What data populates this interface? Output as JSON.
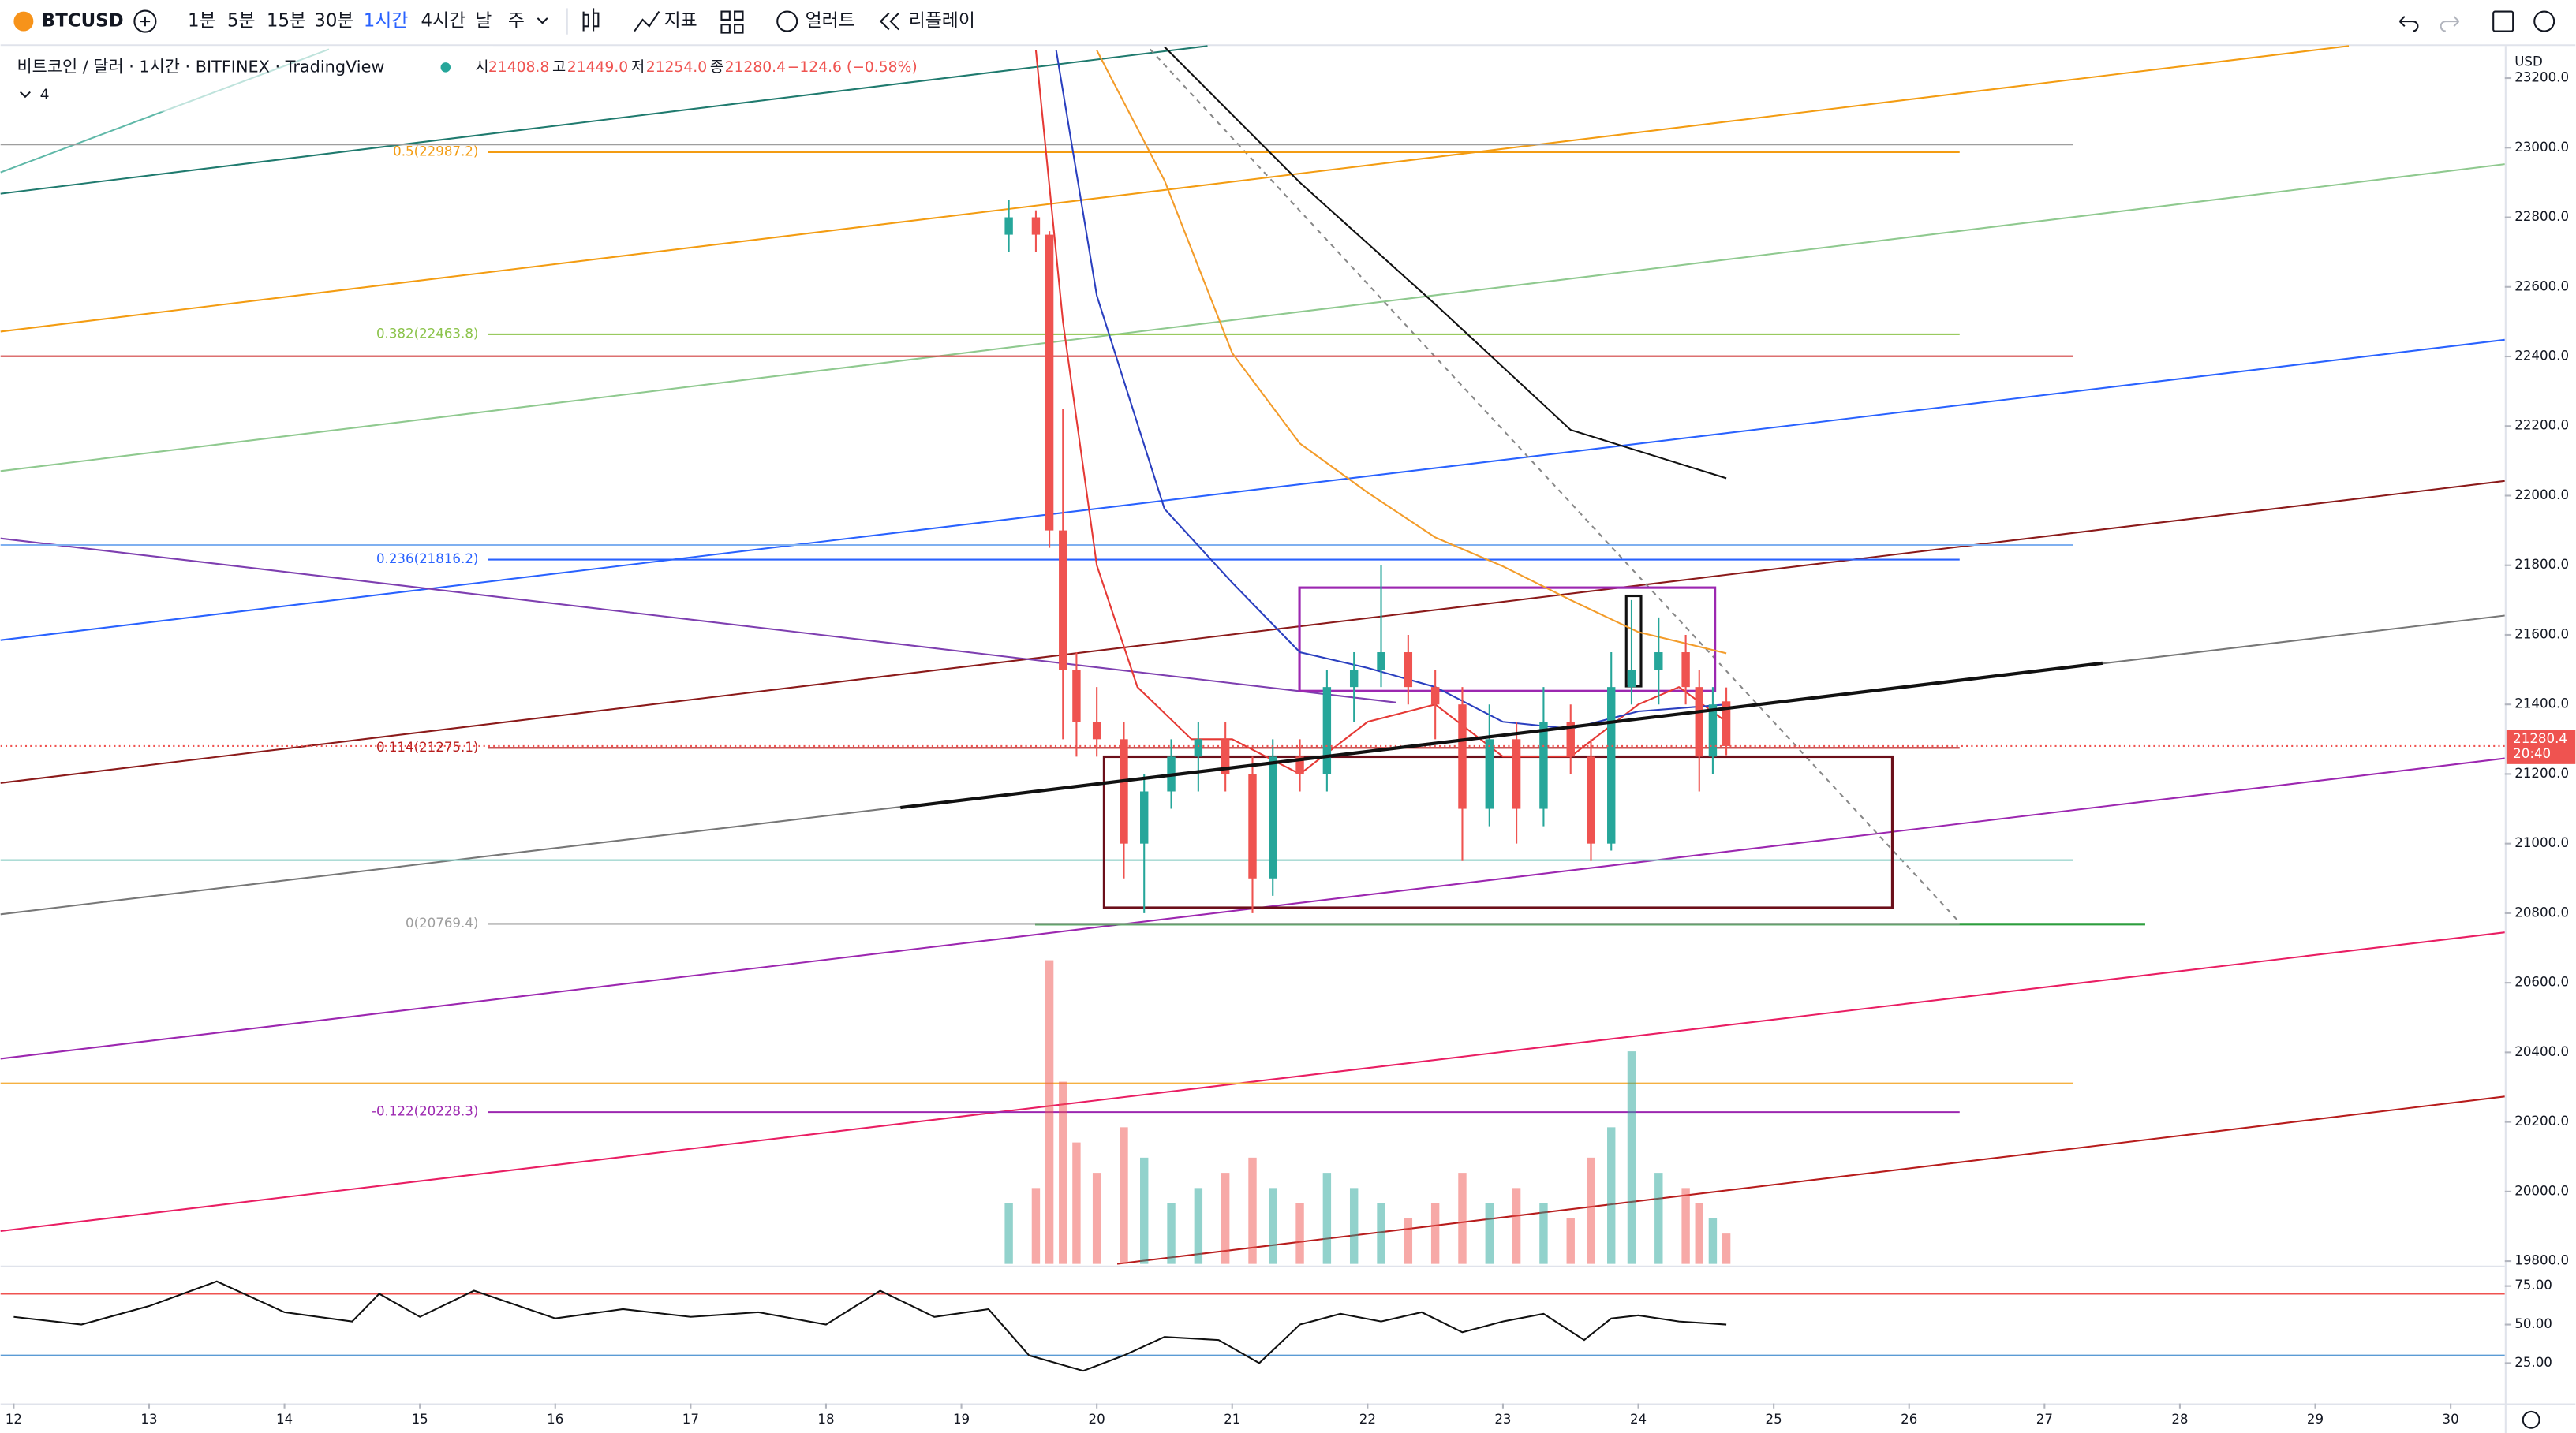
{
  "toolbar": {
    "symbol": "BTCUSD",
    "intervals": [
      "1분",
      "5분",
      "15분",
      "30분",
      "1시간",
      "4시간",
      "날",
      "주"
    ],
    "indicators": "지표",
    "alert": "얼러트",
    "replay": "리플레이"
  },
  "legend": {
    "title": "비트코인 / 달러 · 1시간 · BITFINEX · TradingView",
    "open_label": "시",
    "open": "21408.8",
    "high_label": "고",
    "high": "21449.0",
    "low_label": "저",
    "low": "21254.0",
    "close_label": "종",
    "close": "21280.4",
    "change": "−124.6 (−0.58%)",
    "indicator_count": "4"
  },
  "chart_data": [
    {
      "type": "candlestick",
      "currency": "USD",
      "last_time": "20:40",
      "xlim": [
        11.903,
        30.4
      ],
      "ylim": [
        19792,
        23283
      ],
      "yticks": [
        {
          "value": 19800,
          "label": "19800.0"
        },
        {
          "value": 20000,
          "label": "20000.0"
        },
        {
          "value": 20200,
          "label": "20200.0"
        },
        {
          "value": 20400,
          "label": "20400.0"
        },
        {
          "value": 20600,
          "label": "20600.0"
        },
        {
          "value": 20800,
          "label": "20800.0"
        },
        {
          "value": 21000,
          "label": "21000.0"
        },
        {
          "value": 21200,
          "label": "21200.0"
        },
        {
          "value": 21400,
          "label": "21400.0"
        },
        {
          "value": 21600,
          "label": "21600.0"
        },
        {
          "value": 21800,
          "label": "21800.0"
        },
        {
          "value": 22000,
          "label": "22000.0"
        },
        {
          "value": 22200,
          "label": "22200.0"
        },
        {
          "value": 22400,
          "label": "22400.0"
        },
        {
          "value": 22600,
          "label": "22600.0"
        },
        {
          "value": 22800,
          "label": "22800.0"
        },
        {
          "value": 23000,
          "label": "23000.0"
        },
        {
          "value": 23200,
          "label": "23200.0"
        }
      ],
      "up_color": "#26a69a",
      "down_color": "#ef5350",
      "x": [
        19.35,
        19.55,
        19.65,
        19.75,
        19.85,
        20.0,
        20.2,
        20.35,
        20.55,
        20.75,
        20.95,
        21.15,
        21.3,
        21.5,
        21.7,
        21.9,
        22.1,
        22.3,
        22.5,
        22.7,
        22.9,
        23.1,
        23.3,
        23.5,
        23.65,
        23.8,
        23.95,
        24.15,
        24.35,
        24.45,
        24.55,
        24.65
      ],
      "open": [
        22750,
        22800,
        22750,
        21900,
        21500,
        21350,
        21300,
        21000,
        21150,
        21250,
        21300,
        21200,
        20900,
        21250,
        21200,
        21450,
        21500,
        21550,
        21450,
        21400,
        21100,
        21300,
        21100,
        21350,
        21250,
        21000,
        21450,
        21500,
        21550,
        21450,
        21250,
        21408.8
      ],
      "high": [
        22850,
        22820,
        22760,
        22250,
        21550,
        21450,
        21350,
        21200,
        21300,
        21350,
        21350,
        21250,
        21300,
        21300,
        21500,
        21550,
        21800,
        21600,
        21500,
        21450,
        21400,
        21350,
        21450,
        21400,
        21300,
        21550,
        21700,
        21650,
        21600,
        21500,
        21450,
        21449
      ],
      "low": [
        22700,
        22700,
        21850,
        21300,
        21250,
        21250,
        20900,
        20800,
        21100,
        21150,
        21150,
        20800,
        20850,
        21150,
        21150,
        21350,
        21450,
        21400,
        21300,
        20950,
        21050,
        21000,
        21050,
        21200,
        20950,
        20980,
        21400,
        21400,
        21400,
        21150,
        21200,
        21254
      ],
      "close": [
        22800,
        22750,
        21900,
        21500,
        21350,
        21300,
        21000,
        21150,
        21250,
        21300,
        21200,
        20900,
        21250,
        21200,
        21450,
        21500,
        21550,
        21450,
        21400,
        21100,
        21300,
        21100,
        21350,
        21250,
        21000,
        21450,
        21500,
        21550,
        21450,
        21250,
        21400,
        21280.4
      ],
      "volume": [
        20,
        25,
        100,
        60,
        40,
        30,
        45,
        35,
        20,
        25,
        30,
        35,
        25,
        20,
        30,
        25,
        20,
        15,
        20,
        30,
        20,
        25,
        20,
        15,
        35,
        45,
        70,
        30,
        25,
        20,
        15,
        10
      ],
      "vlim": [
        0,
        100
      ],
      "series": [
        {
          "color": "#e53935",
          "x": [
            19.55,
            19.75,
            20.0,
            20.3,
            20.7,
            21.0,
            21.5,
            22.0,
            22.5,
            23.0,
            23.5,
            24.0,
            24.3,
            24.65
          ],
          "values": [
            23280,
            22500,
            21800,
            21450,
            21300,
            21300,
            21200,
            21350,
            21400,
            21250,
            21250,
            21400,
            21450,
            21350
          ]
        },
        {
          "color": "#2a3fbf",
          "x": [
            19.7,
            20.0,
            20.5,
            21.0,
            21.5,
            22.0,
            22.5,
            23.0,
            23.5,
            24.0,
            24.65
          ],
          "values": [
            23280,
            22575,
            21962,
            21750,
            21550,
            21505,
            21450,
            21350,
            21330,
            21380,
            21400
          ]
        },
        {
          "color": "#f39c2a",
          "x": [
            20.0,
            20.5,
            21.0,
            21.5,
            22.0,
            22.5,
            23.0,
            23.5,
            24.0,
            24.65
          ],
          "values": [
            23280,
            22906,
            22410,
            22150,
            22009,
            21880,
            21797,
            21700,
            21608,
            21547
          ]
        },
        {
          "color": "#111111",
          "x": [
            20.5,
            21.5,
            22.5,
            23.5,
            24.65
          ],
          "values": [
            23290,
            22900,
            22550,
            22189,
            22050
          ]
        }
      ],
      "fib_levels": [
        {
          "value": 22987.2,
          "label": "0.5(22987.2)"
        },
        {
          "value": 22463.8,
          "label": "0.382(22463.8)"
        },
        {
          "value": 21816.2,
          "label": "0.236(21816.2)"
        },
        {
          "value": 21275.1,
          "label": "0.114(21275.1)"
        },
        {
          "value": 20769.4,
          "label": "0(20769.4)"
        },
        {
          "value": 20228.3,
          "label": "-0.122(20228.3)"
        }
      ],
      "fib_colors": [
        "#f39c12",
        "#8bc34a",
        "#2962ff",
        "#b71c1c",
        "#9e9e9e",
        "#9c27b0"
      ]
    },
    {
      "type": "line",
      "color": "#111111",
      "xlim": [
        11.903,
        30.4
      ],
      "xticks": [
        12,
        13,
        14,
        15,
        16,
        17,
        18,
        19,
        20,
        21,
        22,
        23,
        24,
        25,
        26,
        27,
        28,
        29,
        30
      ],
      "ylim": [
        1,
        84
      ],
      "yticks": [
        {
          "value": 25,
          "label": "25.00"
        },
        {
          "value": 50,
          "label": "50.00"
        },
        {
          "value": 75,
          "label": "75.00"
        }
      ],
      "bands": [
        70,
        30
      ],
      "band_colors": [
        "#ef5350",
        "#5b9bd5"
      ],
      "x": [
        12,
        12.5,
        13,
        13.5,
        14,
        14.5,
        14.7,
        15,
        15.4,
        16,
        16.5,
        17,
        17.5,
        18,
        18.4,
        18.8,
        19.2,
        19.5,
        19.9,
        20.2,
        20.5,
        20.9,
        21.2,
        21.5,
        21.8,
        22.1,
        22.4,
        22.7,
        23,
        23.3,
        23.6,
        23.8,
        24,
        24.3,
        24.65
      ],
      "values": [
        55,
        50,
        62,
        78,
        58,
        52,
        70,
        55,
        72,
        54,
        60,
        55,
        58,
        50,
        72,
        55,
        60,
        30,
        20,
        30,
        42,
        40,
        25,
        50,
        57,
        52,
        58,
        45,
        52,
        57,
        40,
        54,
        56,
        52,
        50
      ]
    }
  ]
}
